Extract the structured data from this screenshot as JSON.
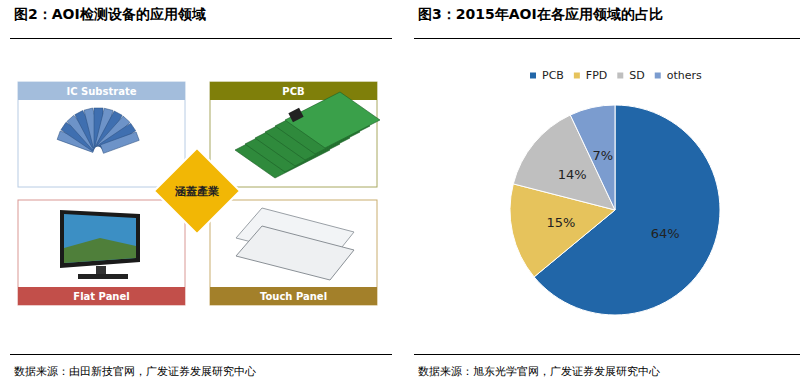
{
  "figure2": {
    "title": "图2：AOI检测设备的应用领域",
    "center": "涵蓋產業",
    "panels": [
      "IC Substrate",
      "PCB",
      "Flat Panel",
      "Touch Panel"
    ],
    "source": "数据来源：由田新技官网，广发证券发展研究中心"
  },
  "chart_data": {
    "type": "pie",
    "title": "图3：2015年AOI在各应用领域的占比",
    "categories": [
      "PCB",
      "FPD",
      "SD",
      "others"
    ],
    "values": [
      64,
      15,
      14,
      7
    ],
    "value_labels": [
      "64%",
      "15%",
      "14%",
      "7%"
    ],
    "colors": [
      "#2166a8",
      "#e6c35c",
      "#bfbfbf",
      "#7b9ccf"
    ],
    "data_labels": true,
    "legend": "top",
    "source": "数据来源：旭东光学官网，广发证券发展研究中心"
  }
}
